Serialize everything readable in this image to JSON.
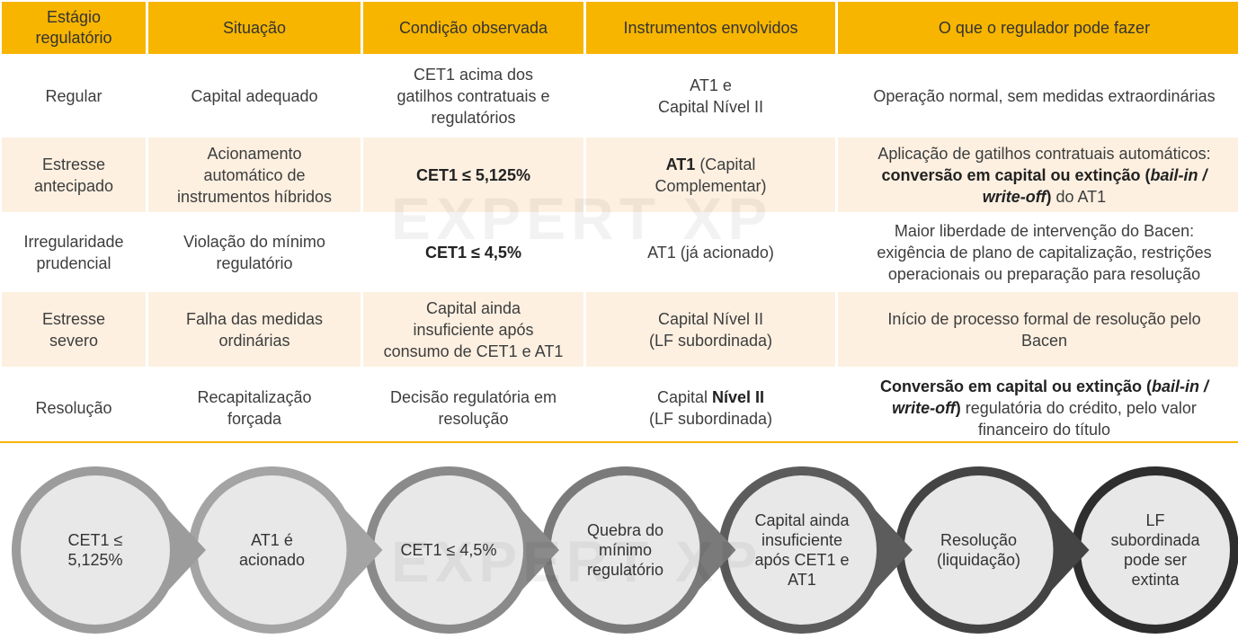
{
  "table": {
    "headers": [
      [
        "Estágio",
        "regulatório"
      ],
      "Situação",
      "Condição observada",
      "Instrumentos envolvidos",
      "O que o regulador pode fazer"
    ],
    "rows": [
      {
        "stage": "Regular",
        "situation": "Capital adequado",
        "condition": [
          "CET1 acima dos",
          "gatilhos contratuais e",
          "regulatórios"
        ],
        "instruments": [
          "AT1 e",
          "Capital Nível II"
        ],
        "regulator": "Operação normal, sem medidas extraordinárias"
      },
      {
        "stage": [
          "Estresse",
          "antecipado"
        ],
        "situation": [
          "Acionamento",
          "automático de",
          "instrumentos híbridos"
        ],
        "condition": "CET1 ≤ 5,125%",
        "instruments": {
          "bold": "AT1",
          "rest1": " (Capital",
          "line2": "Complementar)"
        },
        "regulator": {
          "line1": "Aplicação de gatilhos contratuais automáticos:",
          "bold2a": "conversão em capital ou extinção (",
          "it2": "bail-in /",
          "it3": "write-off",
          "bold3b": ")",
          "rest3": " do AT1"
        }
      },
      {
        "stage": [
          "Irregularidade",
          "prudencial"
        ],
        "situation": [
          "Violação do mínimo",
          "regulatório"
        ],
        "condition": "CET1 ≤ 4,5%",
        "instruments": "AT1 (já acionado)",
        "regulator": [
          "Maior liberdade de intervenção do Bacen:",
          "exigência de plano de capitalização, restrições",
          "operacionais ou preparação para resolução"
        ]
      },
      {
        "stage": [
          "Estresse",
          "severo"
        ],
        "situation": [
          "Falha das medidas",
          "ordinárias"
        ],
        "condition": [
          "Capital ainda",
          "insuficiente após",
          "consumo de CET1 e AT1"
        ],
        "instruments": [
          "Capital Nível II",
          "(LF subordinada)"
        ],
        "regulator": [
          "Início de processo formal de resolução pelo",
          "Bacen"
        ]
      },
      {
        "stage": "Resolução",
        "situation": [
          "Recapitalização",
          "forçada"
        ],
        "condition": [
          "Decisão regulatória em",
          "resolução"
        ],
        "instruments": {
          "pre": "Capital ",
          "bold": "Nível II",
          "line2": "(LF subordinada)"
        },
        "regulator": {
          "bold1": "Conversão em capital ou extinção (",
          "it1": "bail-in /",
          "it2": "write-off",
          "bold2": ")",
          "rest2": " regulatória do crédito, pelo valor",
          "line3": "financeiro do título"
        }
      }
    ]
  },
  "flow": {
    "steps": [
      {
        "label": [
          "CET1 ≤",
          "5,125%"
        ],
        "fill": "#e8e8e8",
        "ring": "#9c9c9c"
      },
      {
        "label": [
          "AT1 é",
          "acionado"
        ],
        "fill": "#e8e8e8",
        "ring": "#a4a4a4"
      },
      {
        "label": [
          "CET1 ≤ 4,5%"
        ],
        "fill": "#e8e8e8",
        "ring": "#8a8a8a"
      },
      {
        "label": [
          "Quebra do",
          "mínimo",
          "regulatório"
        ],
        "fill": "#e8e8e8",
        "ring": "#7a7a7a"
      },
      {
        "label": [
          "Capital ainda",
          "insuficiente",
          "após CET1 e",
          "AT1"
        ],
        "fill": "#e8e8e8",
        "ring": "#5c5c5c"
      },
      {
        "label": [
          "Resolução",
          "(liquidação)"
        ],
        "fill": "#e8e8e8",
        "ring": "#444444"
      },
      {
        "label": [
          "LF",
          "subordinada",
          "pode ser",
          "extinta"
        ],
        "fill": "#e8e8e8",
        "ring": "#2e2e2e"
      }
    ]
  },
  "watermark": "EXPERT XP",
  "colors": {
    "header": "#f7b500",
    "cream": "#fdf0e1",
    "divider": "#f7b500"
  }
}
